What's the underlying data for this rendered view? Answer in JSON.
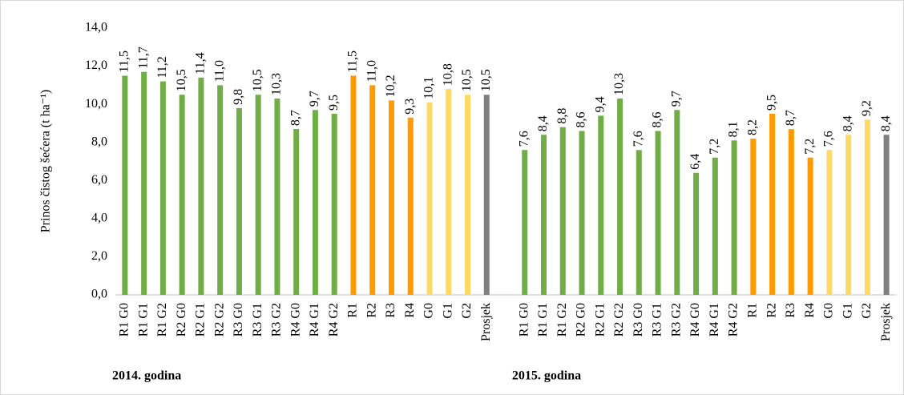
{
  "chart_data": {
    "type": "bar",
    "y_label": "Prinos čistog šećera (t ha⁻¹)",
    "ylim": [
      0,
      14
    ],
    "yticks": [
      {
        "value": 0,
        "label": "0,0"
      },
      {
        "value": 2,
        "label": "2,0"
      },
      {
        "value": 4,
        "label": "4,0"
      },
      {
        "value": 6,
        "label": "6,0"
      },
      {
        "value": 8,
        "label": "8,0"
      },
      {
        "value": 10,
        "label": "10,0"
      },
      {
        "value": 12,
        "label": "12,0"
      },
      {
        "value": 14,
        "label": "14,0"
      }
    ],
    "grid": false,
    "groups": [
      {
        "label": "2014. godina",
        "categories": [
          "R1 G0",
          "R1 G1",
          "R1 G2",
          "R2 G0",
          "R2 G1",
          "R2 G2",
          "R3 G0",
          "R3 G1",
          "R3 G2",
          "R4 G0",
          "R4 G1",
          "R4 G2",
          "R1",
          "R2",
          "R3",
          "R4",
          "G0",
          "G1",
          "G2",
          "Prosjek"
        ],
        "values": [
          11.5,
          11.7,
          11.2,
          10.5,
          11.4,
          11.0,
          9.8,
          10.5,
          10.3,
          8.7,
          9.7,
          9.5,
          11.5,
          11.0,
          10.2,
          9.3,
          10.1,
          10.8,
          10.5,
          10.5
        ],
        "value_labels": [
          "11,5",
          "11,7",
          "11,2",
          "10,5",
          "11,4",
          "11,0",
          "9,8",
          "10,5",
          "10,3",
          "8,7",
          "9,7",
          "9,5",
          "11,5",
          "11,0",
          "10,2",
          "9,3",
          "10,1",
          "10,8",
          "10,5",
          "10,5"
        ],
        "colors": [
          "#70ad47",
          "#70ad47",
          "#70ad47",
          "#70ad47",
          "#70ad47",
          "#70ad47",
          "#70ad47",
          "#70ad47",
          "#70ad47",
          "#70ad47",
          "#70ad47",
          "#70ad47",
          "#ff9a00",
          "#ff9a00",
          "#ff9a00",
          "#ff9a00",
          "#ffd966",
          "#ffd966",
          "#ffd966",
          "#7f7f7f"
        ]
      },
      {
        "label": "2015. godina",
        "categories": [
          "R1 G0",
          "R1 G1",
          "R1 G2",
          "R2 G0",
          "R2 G1",
          "R2 G2",
          "R3 G0",
          "R3 G1",
          "R3 G2",
          "R4 G0",
          "R4 G1",
          "R4 G2",
          "R1",
          "R2",
          "R3",
          "R4",
          "G0",
          "G1",
          "G2",
          "Prosjek"
        ],
        "values": [
          7.6,
          8.4,
          8.8,
          8.6,
          9.4,
          10.3,
          7.6,
          8.6,
          9.7,
          6.4,
          7.2,
          8.1,
          8.2,
          9.5,
          8.7,
          7.2,
          7.6,
          8.4,
          9.2,
          8.4
        ],
        "value_labels": [
          "7,6",
          "8,4",
          "8,8",
          "8,6",
          "9,4",
          "10,3",
          "7,6",
          "8,6",
          "9,7",
          "6,4",
          "7,2",
          "8,1",
          "8,2",
          "9,5",
          "8,7",
          "7,2",
          "7,6",
          "8,4",
          "9,2",
          "8,4"
        ],
        "colors": [
          "#70ad47",
          "#70ad47",
          "#70ad47",
          "#70ad47",
          "#70ad47",
          "#70ad47",
          "#70ad47",
          "#70ad47",
          "#70ad47",
          "#70ad47",
          "#70ad47",
          "#70ad47",
          "#ff9a00",
          "#ff9a00",
          "#ff9a00",
          "#ff9a00",
          "#ffd966",
          "#ffd966",
          "#ffd966",
          "#7f7f7f"
        ]
      }
    ]
  }
}
